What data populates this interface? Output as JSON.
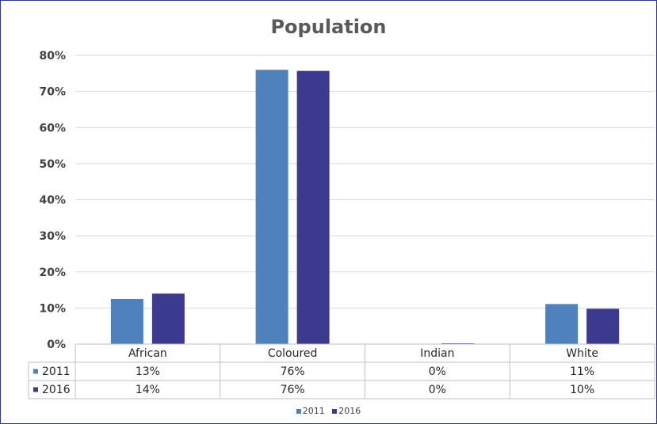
{
  "chart_data": {
    "type": "bar",
    "title": "Population",
    "categories": [
      "African",
      "Coloured",
      "Indian",
      "White"
    ],
    "series": [
      {
        "name": "2011",
        "color": "#4f81bd",
        "values": [
          12.5,
          76,
          0,
          11.1
        ],
        "labels": [
          "13%",
          "76%",
          "0%",
          "11%"
        ]
      },
      {
        "name": "2016",
        "color": "#3c3a8e",
        "values": [
          14,
          75.7,
          0.2,
          9.8
        ],
        "labels": [
          "14%",
          "76%",
          "0%",
          "10%"
        ]
      }
    ],
    "ylim": [
      0,
      80
    ],
    "yticks": [
      "0%",
      "10%",
      "20%",
      "30%",
      "40%",
      "50%",
      "60%",
      "70%",
      "80%"
    ],
    "grid": true,
    "data_table": true,
    "legend": "bottom"
  }
}
